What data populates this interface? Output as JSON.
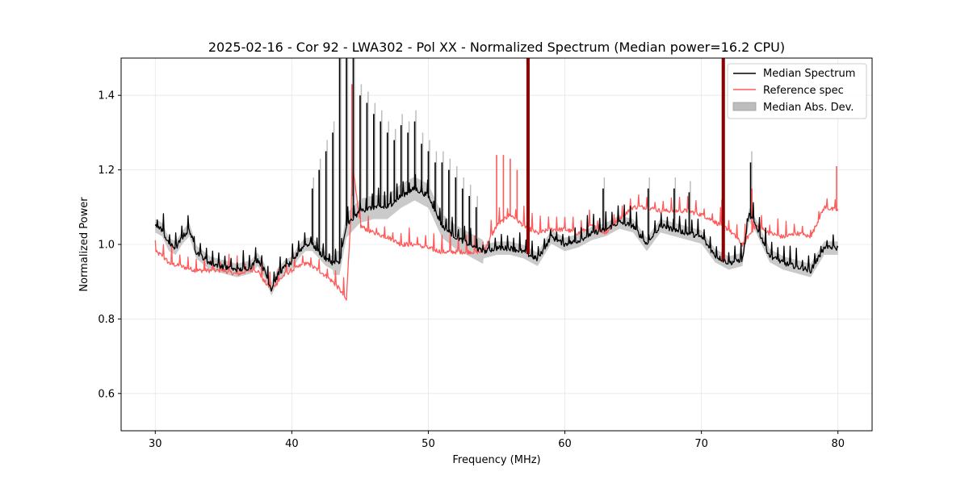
{
  "chart_data": {
    "type": "line",
    "title": "2025-02-16 - Cor 92 - LWA302 - Pol XX - Normalized Spectrum (Median power=16.2 CPU)",
    "xlabel": "Frequency (MHz)",
    "ylabel": "Normalized Power",
    "xlim": [
      27.5,
      82.5
    ],
    "ylim": [
      0.5,
      1.5
    ],
    "xticks": [
      30,
      40,
      50,
      60,
      70,
      80
    ],
    "yticks": [
      0.6,
      0.8,
      1.0,
      1.2,
      1.4
    ],
    "xtick_labels": [
      "30",
      "40",
      "50",
      "60",
      "70",
      "80"
    ],
    "ytick_labels": [
      "0.6",
      "0.8",
      "1.0",
      "1.2",
      "1.4"
    ],
    "grid": true,
    "legend_position": "top-right",
    "colors": {
      "median": "#000000",
      "reference": "#ff5a5a",
      "mad": "#bdbdbd",
      "overlap": "#8b0000"
    },
    "series": [
      {
        "name": "Median Spectrum",
        "style": "line",
        "x": [
          30.0,
          30.5,
          31.0,
          31.5,
          32.0,
          32.5,
          33.0,
          34.0,
          35.0,
          36.0,
          37.0,
          37.5,
          38.0,
          38.5,
          39.0,
          39.5,
          40.0,
          40.5,
          41.0,
          41.5,
          42.0,
          42.5,
          43.0,
          43.5,
          44.0,
          44.5,
          45.0,
          46.0,
          47.0,
          48.0,
          49.0,
          50.0,
          51.0,
          52.0,
          53.0,
          54.0,
          55.0,
          56.0,
          57.0,
          58.0,
          59.0,
          60.0,
          61.0,
          62.0,
          63.0,
          64.0,
          65.0,
          66.0,
          67.0,
          68.0,
          69.0,
          70.0,
          71.0,
          72.0,
          73.0,
          73.5,
          74.0,
          75.0,
          76.0,
          77.0,
          78.0,
          79.0,
          80.0
        ],
        "values": [
          1.05,
          1.04,
          1.0,
          0.99,
          1.02,
          1.04,
          0.98,
          0.95,
          0.94,
          0.93,
          0.94,
          0.96,
          0.93,
          0.88,
          0.92,
          0.94,
          0.95,
          0.98,
          1.0,
          1.0,
          0.98,
          0.96,
          0.95,
          0.95,
          1.05,
          1.07,
          1.09,
          1.1,
          1.1,
          1.13,
          1.15,
          1.13,
          1.05,
          1.02,
          1.0,
          0.98,
          0.99,
          0.99,
          0.98,
          0.96,
          1.02,
          1.0,
          1.01,
          1.03,
          1.04,
          1.06,
          1.05,
          1.0,
          1.05,
          1.04,
          1.03,
          1.02,
          0.97,
          0.95,
          0.96,
          1.08,
          1.05,
          0.97,
          0.95,
          0.94,
          0.93,
          0.99,
          0.99
        ],
        "spikes": [
          [
            41.5,
            1.15
          ],
          [
            42.0,
            1.2
          ],
          [
            42.5,
            1.25
          ],
          [
            43.0,
            1.3
          ],
          [
            43.5,
            1.5
          ],
          [
            44.0,
            1.5
          ],
          [
            44.5,
            1.5
          ],
          [
            45.0,
            1.4
          ],
          [
            45.5,
            1.38
          ],
          [
            46.0,
            1.35
          ],
          [
            46.5,
            1.33
          ],
          [
            47.0,
            1.3
          ],
          [
            47.5,
            1.28
          ],
          [
            48.0,
            1.32
          ],
          [
            48.5,
            1.3
          ],
          [
            49.0,
            1.33
          ],
          [
            49.5,
            1.27
          ],
          [
            50.0,
            1.25
          ],
          [
            50.5,
            1.22
          ],
          [
            51.0,
            1.22
          ],
          [
            51.5,
            1.2
          ],
          [
            52.0,
            1.18
          ],
          [
            52.5,
            1.15
          ],
          [
            53.0,
            1.13
          ],
          [
            53.5,
            1.1
          ],
          [
            57.3,
            1.5
          ],
          [
            71.6,
            1.5
          ],
          [
            73.6,
            1.22
          ],
          [
            62.8,
            1.15
          ],
          [
            66.1,
            1.15
          ],
          [
            68.0,
            1.15
          ],
          [
            69.1,
            1.14
          ]
        ]
      },
      {
        "name": "Reference spec",
        "style": "line",
        "x": [
          30.0,
          30.5,
          31.0,
          32.0,
          33.0,
          34.0,
          35.0,
          36.0,
          37.0,
          37.5,
          38.0,
          38.5,
          39.0,
          39.5,
          40.0,
          41.0,
          42.0,
          43.0,
          43.5,
          44.0,
          44.5,
          45.0,
          46.0,
          47.0,
          48.0,
          49.0,
          50.0,
          51.0,
          52.0,
          53.0,
          54.0,
          55.0,
          56.0,
          57.0,
          58.0,
          59.0,
          60.0,
          61.0,
          62.0,
          63.0,
          64.0,
          65.0,
          66.0,
          67.0,
          68.0,
          69.0,
          70.0,
          71.0,
          72.0,
          73.0,
          74.0,
          75.0,
          76.0,
          77.0,
          78.0,
          79.0,
          80.0
        ],
        "values": [
          0.98,
          0.97,
          0.95,
          0.94,
          0.93,
          0.93,
          0.93,
          0.92,
          0.93,
          0.93,
          0.9,
          0.88,
          0.9,
          0.92,
          0.93,
          0.95,
          0.93,
          0.9,
          0.88,
          0.85,
          1.2,
          1.05,
          1.03,
          1.02,
          1.0,
          1.0,
          0.99,
          0.98,
          0.98,
          0.98,
          0.98,
          1.05,
          1.08,
          1.05,
          1.03,
          1.04,
          1.04,
          1.03,
          1.05,
          1.03,
          1.07,
          1.1,
          1.1,
          1.09,
          1.09,
          1.09,
          1.08,
          1.06,
          1.04,
          1.0,
          1.05,
          1.03,
          1.02,
          1.03,
          1.02,
          1.1,
          1.09
        ],
        "spikes": [
          [
            44.4,
            1.43
          ],
          [
            55.0,
            1.24
          ],
          [
            55.5,
            1.24
          ],
          [
            56.0,
            1.23
          ],
          [
            56.5,
            1.2
          ],
          [
            71.5,
            1.12
          ],
          [
            73.7,
            1.15
          ],
          [
            79.9,
            1.21
          ]
        ]
      },
      {
        "name": "Median Abs. Dev.",
        "style": "band"
      }
    ]
  }
}
